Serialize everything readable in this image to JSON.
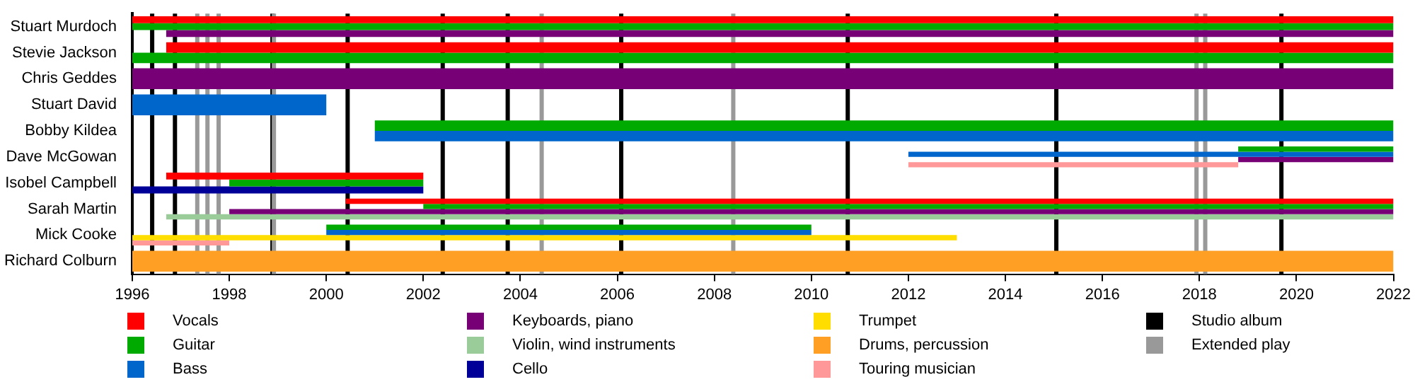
{
  "chart_data": {
    "type": "bar",
    "orientation": "horizontal",
    "categories": [
      "Stuart Murdoch",
      "Stevie Jackson",
      "Chris Geddes",
      "Stuart David",
      "Bobby Kildea",
      "Dave McGowan",
      "Isobel Campbell",
      "Sarah Martin",
      "Mick Cooke",
      "Richard Colburn"
    ],
    "series": [
      {
        "name": "Vocals",
        "color": "#ff0000",
        "base": [
          1996,
          1996.7,
          null,
          null,
          null,
          null,
          1996.7,
          2000.4,
          null,
          null
        ],
        "values": [
          26,
          25.3,
          null,
          null,
          null,
          null,
          5.3,
          21.6,
          null,
          null
        ]
      },
      {
        "name": "Guitar",
        "color": "#00aa00",
        "base": [
          1996,
          1996,
          null,
          null,
          2001,
          2018.8,
          1998,
          2002,
          2000,
          null
        ],
        "values": [
          26,
          26,
          null,
          null,
          21,
          3.2,
          4,
          20,
          10,
          null
        ]
      },
      {
        "name": "Bass",
        "color": "#0066cc",
        "base": [
          null,
          null,
          null,
          1996,
          2001,
          2012,
          null,
          null,
          2000,
          null
        ],
        "values": [
          null,
          null,
          null,
          4,
          21,
          10,
          null,
          null,
          10,
          null
        ]
      },
      {
        "name": "Keyboards, piano",
        "color": "#770077",
        "base": [
          1996.7,
          null,
          1996,
          null,
          null,
          2018.8,
          null,
          1998,
          null,
          null
        ],
        "values": [
          25.3,
          null,
          26,
          null,
          null,
          3.2,
          null,
          24,
          null,
          null
        ]
      },
      {
        "name": "Violin, wind instruments",
        "color": "#99cc99",
        "base": [
          null,
          null,
          null,
          null,
          null,
          null,
          null,
          1996.7,
          null,
          null
        ],
        "values": [
          null,
          null,
          null,
          null,
          null,
          null,
          null,
          25.3,
          null,
          null
        ]
      },
      {
        "name": "Cello",
        "color": "#000099",
        "base": [
          null,
          null,
          null,
          null,
          null,
          null,
          1996,
          null,
          null,
          null
        ],
        "values": [
          null,
          null,
          null,
          null,
          null,
          null,
          6,
          null,
          null,
          null
        ]
      },
      {
        "name": "Trumpet",
        "color": "#ffdd00",
        "base": [
          null,
          null,
          null,
          null,
          null,
          null,
          null,
          null,
          1996,
          null
        ],
        "values": [
          null,
          null,
          null,
          null,
          null,
          null,
          null,
          null,
          17,
          null
        ]
      },
      {
        "name": "Drums, percussion",
        "color": "#ffa024",
        "base": [
          null,
          null,
          null,
          null,
          null,
          null,
          null,
          null,
          null,
          1996
        ],
        "values": [
          null,
          null,
          null,
          null,
          null,
          null,
          null,
          null,
          null,
          26
        ]
      },
      {
        "name": "Touring musician",
        "color": "#ff9999",
        "base": [
          null,
          null,
          null,
          null,
          null,
          2012,
          null,
          null,
          1996,
          null
        ],
        "values": [
          null,
          null,
          null,
          null,
          null,
          6.8,
          null,
          null,
          2,
          null
        ]
      }
    ],
    "xlim": [
      1996,
      2022
    ],
    "xticks": [
      1996,
      1998,
      2000,
      2002,
      2004,
      2006,
      2008,
      2010,
      2012,
      2014,
      2016,
      2018,
      2020,
      2022
    ],
    "ref_lines": [
      {
        "axis": "x",
        "value": 1996.41,
        "label": "Studio album",
        "color": "#000000"
      },
      {
        "axis": "x",
        "value": 1996.88,
        "color": "#000000"
      },
      {
        "axis": "x",
        "value": 1998.89,
        "color": "#000000"
      },
      {
        "axis": "x",
        "value": 2000.44,
        "color": "#000000"
      },
      {
        "axis": "x",
        "value": 2002.4,
        "color": "#000000"
      },
      {
        "axis": "x",
        "value": 2003.74,
        "color": "#000000"
      },
      {
        "axis": "x",
        "value": 2006.08,
        "color": "#000000"
      },
      {
        "axis": "x",
        "value": 2010.75,
        "color": "#000000"
      },
      {
        "axis": "x",
        "value": 2015.05,
        "color": "#000000"
      },
      {
        "axis": "x",
        "value": 2019.69,
        "color": "#000000"
      },
      {
        "axis": "x",
        "value": 1997.34,
        "label": "Extended play",
        "color": "#999999"
      },
      {
        "axis": "x",
        "value": 1997.55,
        "color": "#999999"
      },
      {
        "axis": "x",
        "value": 1997.78,
        "color": "#999999"
      },
      {
        "axis": "x",
        "value": 1998.92,
        "color": "#999999"
      },
      {
        "axis": "x",
        "value": 2004.44,
        "color": "#999999"
      },
      {
        "axis": "x",
        "value": 2008.39,
        "color": "#999999"
      },
      {
        "axis": "x",
        "value": 2017.94,
        "color": "#999999"
      },
      {
        "axis": "x",
        "value": 2018.12,
        "color": "#999999"
      }
    ],
    "grid": false,
    "legend": "bottom"
  }
}
